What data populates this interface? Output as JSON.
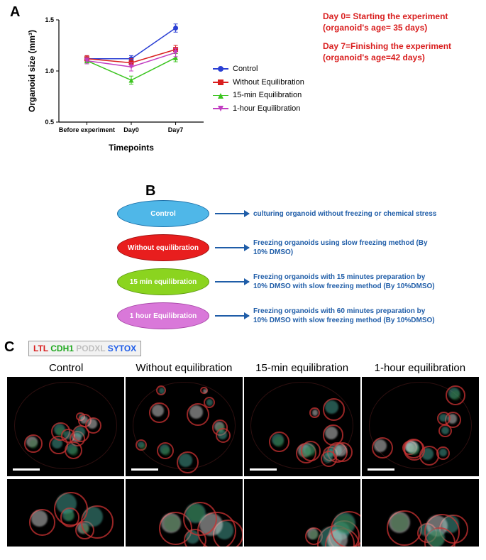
{
  "panels": {
    "A": "A",
    "B": "B",
    "C": "C"
  },
  "annotations": {
    "day0": "Day 0= Starting the experiment (organoid's age= 35 days)",
    "day7": "Day 7=Finishing the experiment (organoid's age=42 days)"
  },
  "chart": {
    "type": "line-scatter",
    "ylabel": "Organoid size (mm³)",
    "xlabel": "Timepoints",
    "ylabel_fontsize": 12,
    "xlabel_fontsize": 12,
    "categories": [
      "Before experiment",
      "Day0",
      "Day7"
    ],
    "ylim": [
      0.5,
      1.5
    ],
    "yticks": [
      0.5,
      1.0,
      1.5
    ],
    "series": [
      {
        "name": "Control",
        "color": "#2a3fd4",
        "marker": "circle",
        "values": [
          1.12,
          1.12,
          1.42
        ],
        "err": [
          0.03,
          0.03,
          0.04
        ]
      },
      {
        "name": "Without Equilibration",
        "color": "#d91e1e",
        "marker": "square",
        "values": [
          1.12,
          1.08,
          1.21
        ],
        "err": [
          0.03,
          0.04,
          0.04
        ]
      },
      {
        "name": "15-min Equilibration",
        "color": "#3bc41f",
        "marker": "triangle",
        "values": [
          1.1,
          0.91,
          1.13
        ],
        "err": [
          0.03,
          0.04,
          0.04
        ]
      },
      {
        "name": "1-hour Equilibration",
        "color": "#c23ec2",
        "marker": "tri-down",
        "values": [
          1.1,
          1.04,
          1.18
        ],
        "err": [
          0.03,
          0.04,
          0.04
        ]
      }
    ],
    "tick_fontsize": 9,
    "axis_color": "#000000",
    "background": "#ffffff"
  },
  "panelB": {
    "rows": [
      {
        "label": "Control",
        "fill": "#4fb7e8",
        "stroke": "#1b6fa8",
        "desc": "culturing organoid without freezing or chemical stress"
      },
      {
        "label": "Without equilibration",
        "fill": "#e81e1e",
        "stroke": "#a01010",
        "desc": "Freezing organoids using slow freezing method (By 10% DMSO)"
      },
      {
        "label": "15 min equilibration",
        "fill": "#8bd41f",
        "stroke": "#5e9a12",
        "desc": "Freezing organoids with 15 minutes preparation by 10% DMSO with slow freezing method (By 10%DMSO)"
      },
      {
        "label": "1 hour Equilibration",
        "fill": "#d978d9",
        "stroke": "#a846a8",
        "desc": "Freezing organoids with 60 minutes preparation by 10% DMSO with slow freezing method (By 10%DMSO)"
      }
    ],
    "desc_color": "#1f5da8",
    "arrow_color": "#1f5da8"
  },
  "panelC": {
    "markers": [
      {
        "text": "LTL",
        "color": "#d91e1e"
      },
      {
        "text": "CDH1",
        "color": "#1fa81f"
      },
      {
        "text": "PODXL",
        "color": "#bfbfbf"
      },
      {
        "text": "SYTOX",
        "color": "#1f5de8"
      }
    ],
    "columns": [
      "Control",
      "Without equilibration",
      "15-min equilibration",
      "1-hour equilibration"
    ],
    "image_bg": "#000000",
    "blob_colors": {
      "red": "#c83232",
      "green": "#2f7a3a",
      "teal": "#4aa89a",
      "white": "#d8d8d8"
    },
    "scalebar_color": "#ffffff"
  }
}
